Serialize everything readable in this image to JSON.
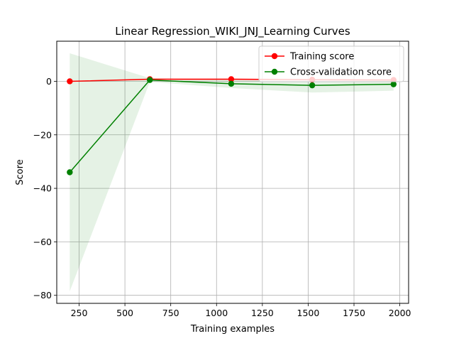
{
  "chart_data": {
    "type": "line",
    "title": "Linear Regression_WIKI_JNJ_Learning Curves",
    "xlabel": "Training examples",
    "ylabel": "Score",
    "xlim": [
      128,
      2048
    ],
    "ylim": [
      -83,
      15
    ],
    "xticks": [
      250,
      500,
      750,
      1000,
      1250,
      1500,
      1750,
      2000
    ],
    "yticks": [
      0,
      -20,
      -40,
      -60,
      -80
    ],
    "grid": true,
    "legend_position": "top-right",
    "x": [
      199,
      636,
      1080,
      1522,
      1966
    ],
    "series": [
      {
        "name": "Training score",
        "color": "#ff0000",
        "values": [
          0.0,
          0.8,
          0.8,
          0.6,
          0.5
        ],
        "band_upper": [
          0.1,
          1.1,
          1.2,
          1.0,
          0.9
        ],
        "band_lower": [
          -0.1,
          0.5,
          0.4,
          0.2,
          0.1
        ]
      },
      {
        "name": "Cross-validation score",
        "color": "#008000",
        "values": [
          -34.0,
          0.5,
          -0.9,
          -1.5,
          -1.1
        ],
        "band_upper": [
          10.5,
          1.2,
          0.6,
          0.0,
          0.3
        ],
        "band_lower": [
          -78.5,
          -0.2,
          -2.5,
          -4.2,
          -3.5
        ]
      }
    ]
  }
}
